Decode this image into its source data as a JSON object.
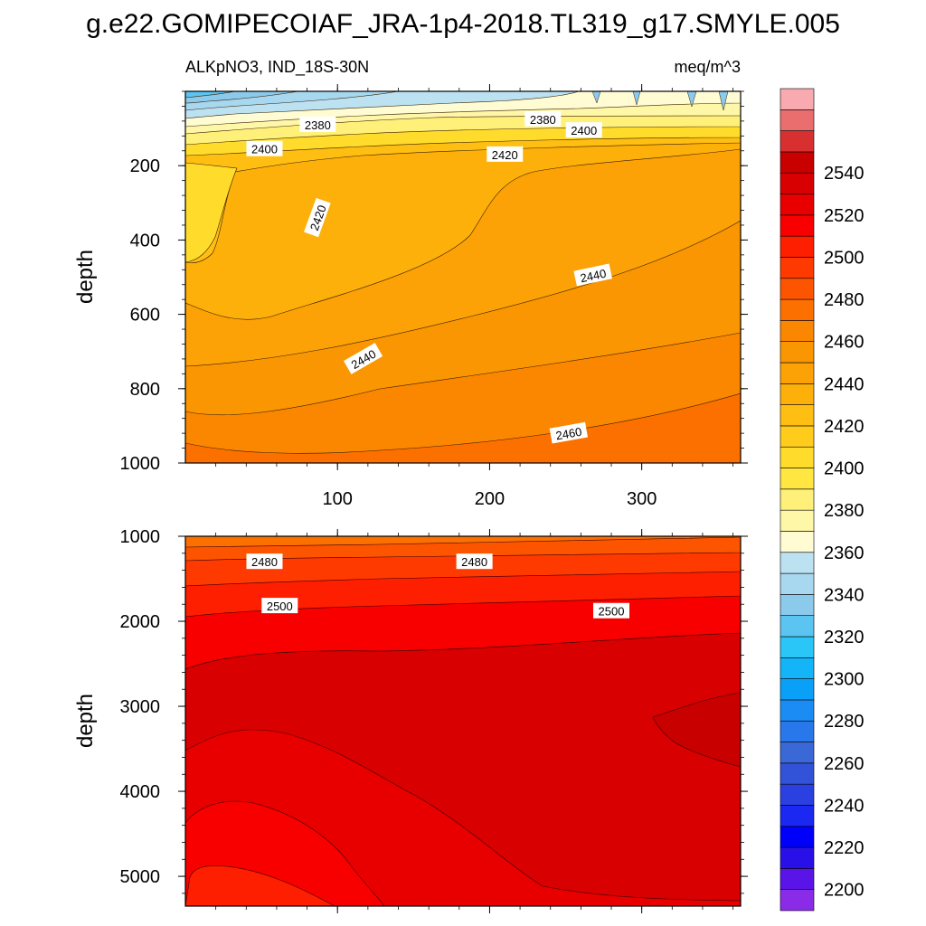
{
  "chart_data": {
    "type": "contour",
    "title": "g.e22.GOMIPECOIAF_JRA-1p4-2018.TL319_g17.SMYLE.005",
    "left_string": "ALKpNO3, IND_18S-30N",
    "right_string": "meq/m^3",
    "xlim": [
      0,
      365
    ],
    "x_ticks": [
      100,
      200,
      300
    ],
    "x_tick_labels": [
      "100",
      "200",
      "300"
    ],
    "upper_panel": {
      "ylabel": "depth",
      "ylim": [
        1000,
        0
      ],
      "y_ticks": [
        200,
        400,
        600,
        800,
        1000
      ],
      "y_tick_labels": [
        "200",
        "400",
        "600",
        "800",
        "1000"
      ],
      "contour_labels": [
        {
          "text": "2380",
          "x": 87,
          "y": 90
        },
        {
          "text": "2400",
          "x": 52,
          "y": 155
        },
        {
          "text": "2380",
          "x": 235,
          "y": 75
        },
        {
          "text": "2400",
          "x": 262,
          "y": 105
        },
        {
          "text": "2420",
          "x": 210,
          "y": 170
        },
        {
          "text": "2420",
          "x": 87,
          "y": 340,
          "rotate": -70
        },
        {
          "text": "2440",
          "x": 268,
          "y": 495,
          "rotate": -12
        },
        {
          "text": "2440",
          "x": 117,
          "y": 720,
          "rotate": -30
        },
        {
          "text": "2460",
          "x": 252,
          "y": 920,
          "rotate": -10
        }
      ]
    },
    "lower_panel": {
      "ylabel": "depth",
      "ylim": [
        5350,
        1000
      ],
      "y_ticks": [
        1000,
        2000,
        3000,
        4000,
        5000
      ],
      "y_tick_labels": [
        "1000",
        "2000",
        "3000",
        "4000",
        "5000"
      ],
      "contour_labels": [
        {
          "text": "2480",
          "x": 52,
          "y": 1300
        },
        {
          "text": "2480",
          "x": 190,
          "y": 1300
        },
        {
          "text": "2500",
          "x": 62,
          "y": 1820
        },
        {
          "text": "2500",
          "x": 280,
          "y": 1880
        }
      ]
    },
    "colorbar": {
      "levels": [
        2200,
        2210,
        2220,
        2230,
        2240,
        2250,
        2260,
        2270,
        2280,
        2290,
        2300,
        2310,
        2320,
        2330,
        2340,
        2350,
        2360,
        2370,
        2380,
        2390,
        2400,
        2410,
        2420,
        2430,
        2440,
        2450,
        2460,
        2470,
        2480,
        2490,
        2500,
        2510,
        2520,
        2530,
        2540,
        2550
      ],
      "labels": [
        "2200",
        "2220",
        "2240",
        "2260",
        "2280",
        "2300",
        "2320",
        "2340",
        "2360",
        "2380",
        "2400",
        "2420",
        "2440",
        "2460",
        "2480",
        "2500",
        "2520",
        "2540"
      ],
      "colors": [
        "#8a2be8",
        "#5a14e8",
        "#2a10e8",
        "#0000fa",
        "#1b28f2",
        "#2a40e0",
        "#3252d8",
        "#3a68d6",
        "#2878ec",
        "#1a8cf4",
        "#0aa0f8",
        "#14b4f8",
        "#2ac6f8",
        "#5cc4f0",
        "#8ccaec",
        "#a8d8f0",
        "#bce2f2",
        "#fffcd4",
        "#fff7a8",
        "#fff07a",
        "#ffe640",
        "#ffdc2c",
        "#ffcc1c",
        "#ffbe12",
        "#fdb00a",
        "#fca206",
        "#fa9602",
        "#fb8600",
        "#fc7000",
        "#fd5400",
        "#ff3a00",
        "#fe1e00",
        "#f80000",
        "#e80000",
        "#d80000",
        "#c80000",
        "#d83030",
        "#ea6e6e",
        "#f8aab0"
      ]
    }
  }
}
